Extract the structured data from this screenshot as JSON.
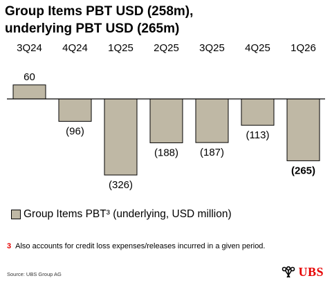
{
  "title_line1": "Group Items PBT USD (258m),",
  "title_line2": "underlying PBT USD (265m)",
  "chart_data": {
    "type": "bar",
    "categories": [
      "3Q24",
      "4Q24",
      "1Q25",
      "2Q25",
      "3Q25",
      "4Q25",
      "1Q26"
    ],
    "values": [
      60,
      -96,
      -326,
      -188,
      -187,
      -113,
      -265
    ],
    "data_labels": [
      "60",
      "(96)",
      "(326)",
      "(188)",
      "(187)",
      "(113)",
      "(265)"
    ],
    "bold_label_index": 6,
    "series": [
      {
        "name": "Group Items PBT³ (underlying, USD million)",
        "values": [
          60,
          -96,
          -326,
          -188,
          -187,
          -113,
          -265
        ]
      }
    ],
    "legend_position": "bottom-left",
    "grid": false,
    "axis_visible": false,
    "bar_color": "#bfb8a5",
    "bar_outline": "#000000"
  },
  "legend_label": "Group Items PBT³ (underlying, USD million)",
  "footnote_number": "3",
  "footnote_text": "Also accounts for credit loss expenses/releases incurred in a given period.",
  "source": "Source: UBS Group AG",
  "logo_text": "UBS",
  "colors": {
    "accent": "#e60000",
    "bar": "#bfb8a5"
  }
}
